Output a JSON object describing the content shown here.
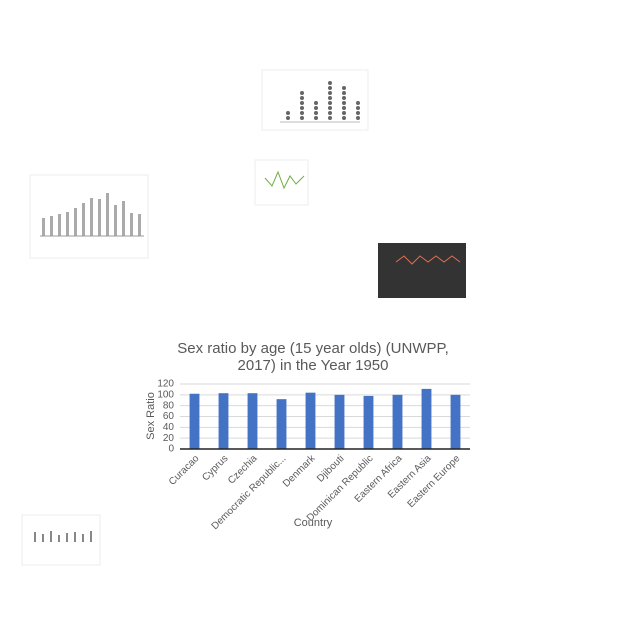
{
  "chart_data": {
    "type": "bar",
    "title": "Sex ratio by age (15 year olds) (UNWPP, 2017) in the Year 1950",
    "x_label": "Country",
    "y_label": "Sex Ratio",
    "categories": [
      "Curacao",
      "Cyprus",
      "Czechia",
      "Democratic Republic...",
      "Denmark",
      "Djibouti",
      "Dominican Republic",
      "Eastern Africa",
      "Eastern Asia",
      "Eastern Europe"
    ],
    "values": [
      102,
      103,
      103,
      92,
      104,
      100,
      98,
      100,
      111,
      100
    ],
    "color": "#4472c4",
    "ylim": [
      0,
      120
    ],
    "yticks": [
      0,
      20,
      40,
      60,
      80,
      100,
      120
    ],
    "grid": true
  }
}
